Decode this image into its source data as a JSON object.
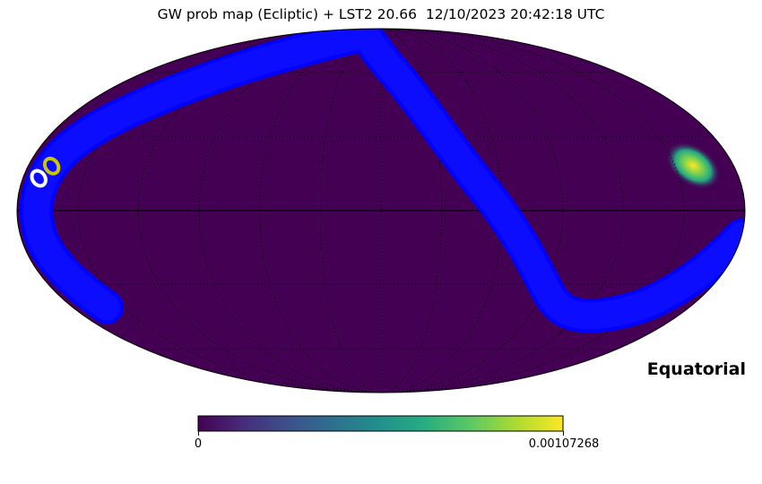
{
  "chart_data": {
    "type": "heatmap",
    "projection": "mollweide",
    "title": "GW prob map (Ecliptic) + LST2 20.66  12/10/2023 20:42:18 UTC",
    "frame_label": "Equatorial",
    "graticule": true,
    "colormap": "viridis",
    "colorbar": {
      "min": 0,
      "max": 0.00107268,
      "min_label": "0",
      "max_label": "0.00107268"
    },
    "hotspot": {
      "lon_deg": -165,
      "lat_deg": 20,
      "peak_value": 0.00107268
    },
    "observation_band": {
      "color": "#0000ff",
      "description_points_lonlat": [
        [
          -180,
          -10
        ],
        [
          -150,
          -40
        ],
        [
          -100,
          -38
        ],
        [
          -50,
          10
        ],
        [
          -10,
          60
        ],
        [
          30,
          82
        ],
        [
          90,
          70
        ],
        [
          135,
          50
        ],
        [
          165,
          25
        ],
        [
          170,
          -10
        ],
        [
          160,
          -40
        ]
      ]
    },
    "markers": [
      {
        "name": "yellow-ring",
        "color": "#c8c800",
        "lon_deg": 168,
        "lat_deg": 18
      },
      {
        "name": "white-ring",
        "color": "#ffffff",
        "lon_deg": 172,
        "lat_deg": 13
      }
    ]
  }
}
